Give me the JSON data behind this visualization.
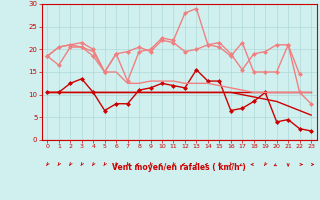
{
  "x": [
    0,
    1,
    2,
    3,
    4,
    5,
    6,
    7,
    8,
    9,
    10,
    11,
    12,
    13,
    14,
    15,
    16,
    17,
    18,
    19,
    20,
    21,
    22,
    23
  ],
  "background_color": "#d0f0f0",
  "grid_color": "#b0d8d8",
  "xlabel": "Vent moyen/en rafales ( km/h )",
  "xlabel_color": "#cc0000",
  "ylim": [
    0,
    30
  ],
  "yticks": [
    0,
    5,
    10,
    15,
    20,
    25,
    30
  ],
  "lines": [
    {
      "y": [
        10.5,
        10.5,
        10.5,
        10.5,
        10.5,
        10.5,
        10.5,
        10.5,
        10.5,
        10.5,
        10.5,
        10.5,
        10.5,
        10.5,
        10.5,
        10.5,
        10.5,
        10.5,
        10.5,
        10.5,
        10.5,
        10.5,
        10.5,
        10.5
      ],
      "color": "#cc0000",
      "lw": 1.0,
      "marker": null,
      "style": "-"
    },
    {
      "y": [
        10.5,
        10.5,
        10.5,
        10.5,
        10.5,
        10.5,
        10.5,
        10.5,
        10.5,
        10.5,
        10.5,
        10.5,
        10.5,
        10.5,
        10.5,
        10.5,
        10.5,
        10.0,
        9.5,
        9.0,
        8.5,
        7.5,
        6.5,
        5.5
      ],
      "color": "#cc0000",
      "lw": 1.0,
      "marker": null,
      "style": "-"
    },
    {
      "y": [
        10.5,
        10.5,
        12.5,
        13.5,
        10.5,
        6.5,
        8.0,
        8.0,
        11.0,
        11.5,
        12.5,
        12.0,
        11.5,
        15.5,
        13.0,
        13.0,
        6.5,
        7.0,
        8.5,
        10.5,
        4.0,
        4.5,
        2.5,
        2.0
      ],
      "color": "#cc0000",
      "lw": 1.0,
      "marker": "D",
      "markersize": 2.0,
      "style": "-"
    },
    {
      "y": [
        18.5,
        16.5,
        20.5,
        20.5,
        18.5,
        15.0,
        19.0,
        19.5,
        20.5,
        19.5,
        22.0,
        21.5,
        19.5,
        20.0,
        21.0,
        20.5,
        18.5,
        21.5,
        15.0,
        15.0,
        15.0,
        21.0,
        10.5,
        8.0
      ],
      "color": "#f08080",
      "lw": 1.0,
      "marker": "D",
      "markersize": 2.0,
      "style": "-"
    },
    {
      "y": [
        18.5,
        20.5,
        21.0,
        21.5,
        20.0,
        15.0,
        19.0,
        13.0,
        19.5,
        20.0,
        22.5,
        22.0,
        28.0,
        29.0,
        21.0,
        21.5,
        19.0,
        15.5,
        19.0,
        19.5,
        21.0,
        21.0,
        14.5,
        null
      ],
      "color": "#f08080",
      "lw": 1.0,
      "marker": "D",
      "markersize": 2.0,
      "style": "-"
    },
    {
      "y": [
        18.5,
        20.5,
        21.0,
        20.5,
        19.5,
        15.0,
        15.0,
        12.5,
        12.5,
        13.0,
        13.0,
        13.0,
        12.5,
        12.5,
        12.5,
        12.0,
        11.5,
        11.0,
        10.5,
        10.5,
        10.5,
        10.5,
        10.5,
        10.5
      ],
      "color": "#f08080",
      "lw": 1.0,
      "marker": null,
      "style": "-"
    }
  ],
  "arrow_color": "#cc0000",
  "tick_color": "#cc0000",
  "axis_color": "#cc0000",
  "arrow_angles_deg": [
    225,
    225,
    225,
    225,
    225,
    225,
    225,
    225,
    180,
    225,
    180,
    225,
    180,
    225,
    180,
    225,
    225,
    200,
    180,
    225,
    200,
    270,
    0,
    0
  ]
}
